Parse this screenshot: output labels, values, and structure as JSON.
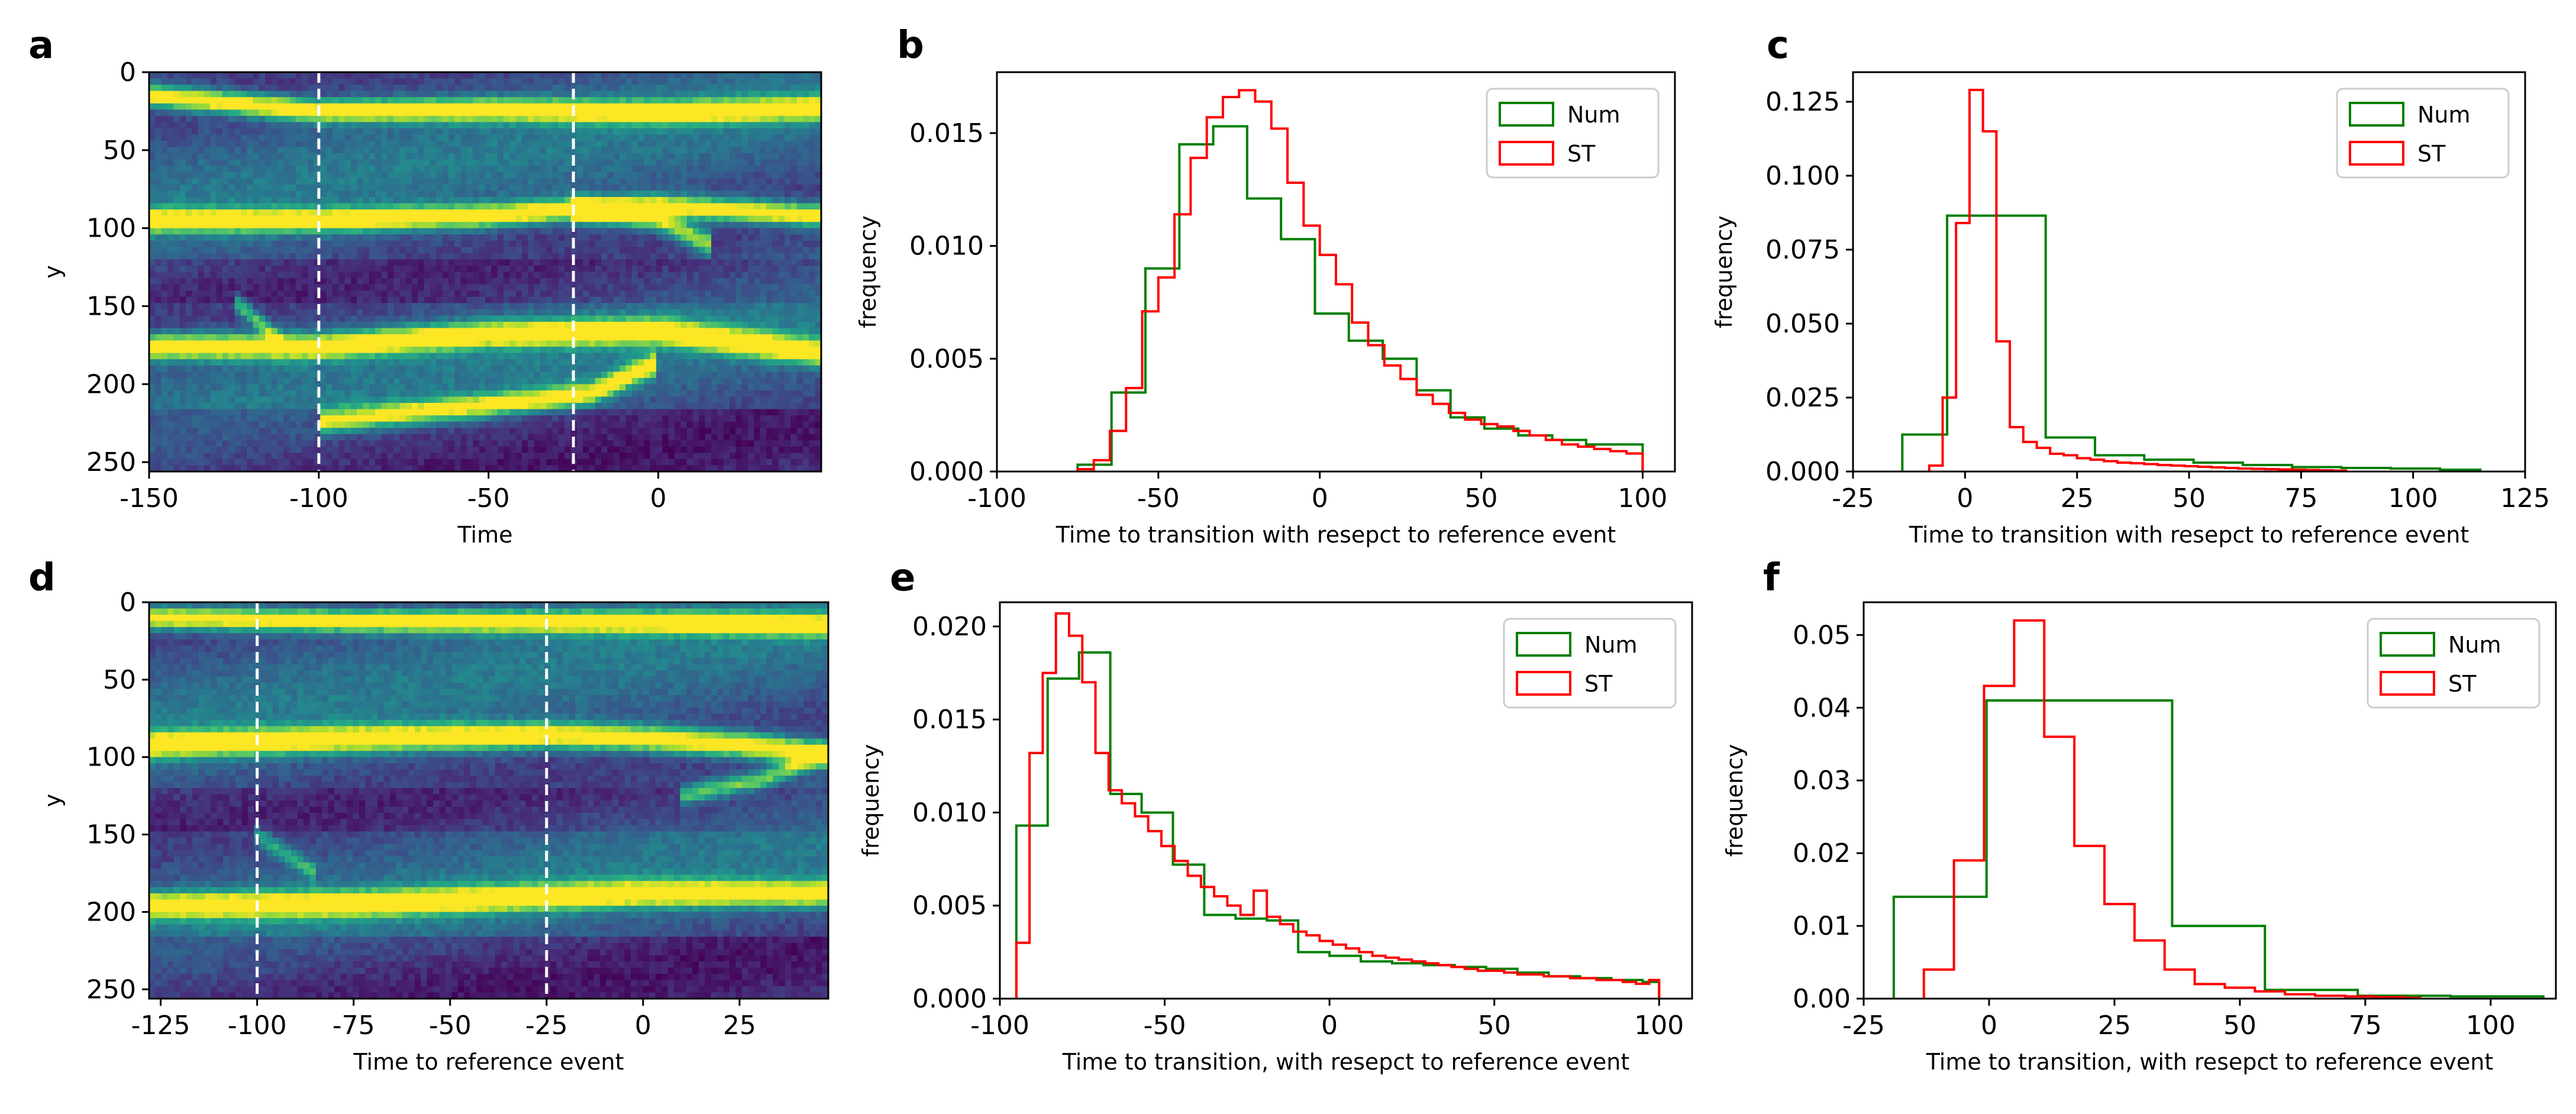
{
  "figure_title": "",
  "colors": {
    "num": "#008000",
    "st": "#ff0000",
    "axis": "#000000",
    "dash": "#ffffff"
  },
  "chart_data": [
    {
      "id": "a",
      "letter": "a",
      "type": "heatmap",
      "colormap": "viridis",
      "xlabel": "Time",
      "ylabel": "y",
      "xlim": [
        -150,
        48
      ],
      "ylim": [
        256,
        0
      ],
      "xticks": [
        -150,
        -100,
        -50,
        0
      ],
      "xtick_labels": [
        "-150",
        "-100",
        "-50",
        "0"
      ],
      "yticks": [
        0,
        50,
        100,
        150,
        200,
        250
      ],
      "ytick_labels": [
        "0",
        "50",
        "100",
        "150",
        "200",
        "250"
      ],
      "vlines": [
        -100,
        -25
      ],
      "bands": [
        {
          "points": [
            [
              -150,
              15
            ],
            [
              -100,
              25
            ],
            [
              -50,
              24
            ],
            [
              0,
              26
            ],
            [
              48,
              23
            ]
          ],
          "width": 7,
          "intensity": 1.0
        },
        {
          "points": [
            [
              -150,
              95
            ],
            [
              -100,
              95
            ],
            [
              -50,
              92
            ],
            [
              -25,
              88
            ],
            [
              0,
              86
            ],
            [
              48,
              92
            ]
          ],
          "width": 7,
          "intensity": 1.0
        },
        {
          "points": [
            [
              -25,
              88
            ],
            [
              0,
              95
            ],
            [
              15,
              110
            ]
          ],
          "width": 7,
          "intensity": 0.75
        },
        {
          "points": [
            [
              -150,
              176
            ],
            [
              -100,
              176
            ],
            [
              -50,
              168
            ],
            [
              0,
              166
            ],
            [
              48,
              180
            ]
          ],
          "width": 8,
          "intensity": 1.0
        },
        {
          "points": [
            [
              -125,
              146
            ],
            [
              -110,
              175
            ]
          ],
          "width": 6,
          "intensity": 0.55
        },
        {
          "points": [
            [
              -100,
              224
            ],
            [
              -50,
              214
            ],
            [
              -20,
              206
            ],
            [
              0,
              186
            ]
          ],
          "width": 7,
          "intensity": 0.85
        }
      ]
    },
    {
      "id": "b",
      "letter": "b",
      "type": "histogram",
      "xlabel": "Time to transition with resepct to reference event",
      "ylabel": "frequency",
      "xlim": [
        -100,
        110
      ],
      "ylim": [
        0,
        0.0177
      ],
      "xticks": [
        -100,
        -50,
        0,
        50,
        100
      ],
      "xtick_labels": [
        "-100",
        "-50",
        "0",
        "50",
        "100"
      ],
      "yticks": [
        0,
        0.005,
        0.01,
        0.015
      ],
      "ytick_labels": [
        "0.000",
        "0.005",
        "0.010",
        "0.015"
      ],
      "legend": [
        "Num",
        "ST"
      ],
      "series": [
        {
          "name": "Num",
          "color": "#008000",
          "edges": [
            -75,
            -64.5,
            -54,
            -43.5,
            -33,
            -22.5,
            -12,
            -1.5,
            9,
            19.5,
            30,
            40.5,
            51,
            61.5,
            72,
            82.5,
            93,
            100
          ],
          "values": [
            0.0003,
            0.0035,
            0.009,
            0.0145,
            0.0153,
            0.0121,
            0.0103,
            0.007,
            0.0058,
            0.005,
            0.0036,
            0.0024,
            0.0019,
            0.0016,
            0.0014,
            0.0012,
            0.0012
          ]
        },
        {
          "name": "ST",
          "color": "#ff0000",
          "edges": [
            -75,
            -70,
            -65,
            -60,
            -55,
            -50,
            -45,
            -40,
            -35,
            -30,
            -25,
            -20,
            -15,
            -10,
            -5,
            0,
            5,
            10,
            15,
            20,
            25,
            30,
            35,
            40,
            45,
            50,
            55,
            60,
            65,
            70,
            75,
            80,
            85,
            90,
            95,
            100
          ],
          "values": [
            0.0001,
            0.0005,
            0.0018,
            0.0037,
            0.0071,
            0.0086,
            0.0114,
            0.0139,
            0.0157,
            0.0166,
            0.0169,
            0.0164,
            0.0152,
            0.0128,
            0.0109,
            0.0096,
            0.0083,
            0.0066,
            0.0056,
            0.0047,
            0.0041,
            0.0034,
            0.003,
            0.0026,
            0.0023,
            0.0021,
            0.002,
            0.0018,
            0.0016,
            0.0014,
            0.0012,
            0.0011,
            0.001,
            0.0009,
            0.0008
          ]
        }
      ]
    },
    {
      "id": "c",
      "letter": "c",
      "type": "histogram",
      "xlabel": "Time to transition with resepct to reference event",
      "ylabel": "frequency",
      "xlim": [
        -25,
        125
      ],
      "ylim": [
        0,
        0.135
      ],
      "xticks": [
        -25,
        0,
        25,
        50,
        75,
        100,
        125
      ],
      "xtick_labels": [
        "-25",
        "0",
        "25",
        "50",
        "75",
        "100",
        "125"
      ],
      "yticks": [
        0,
        0.025,
        0.05,
        0.075,
        0.1,
        0.125
      ],
      "ytick_labels": [
        "0.000",
        "0.025",
        "0.050",
        "0.075",
        "0.100",
        "0.125"
      ],
      "legend": [
        "Num",
        "ST"
      ],
      "series": [
        {
          "name": "Num",
          "color": "#008000",
          "edges": [
            -14,
            -4,
            7,
            18,
            29,
            40,
            51,
            62,
            73,
            84,
            95,
            106,
            115
          ],
          "values": [
            0.0125,
            0.0865,
            0.0865,
            0.0115,
            0.0055,
            0.004,
            0.003,
            0.0022,
            0.0015,
            0.0012,
            0.001,
            0.0006
          ]
        },
        {
          "name": "ST",
          "color": "#ff0000",
          "edges": [
            -8,
            -5,
            -2,
            1,
            4,
            7,
            10,
            13,
            16,
            19,
            22,
            25,
            28,
            31,
            34,
            37,
            40,
            43,
            46,
            49,
            52,
            55,
            58,
            61,
            64,
            67,
            70,
            73,
            76,
            79,
            82,
            85
          ],
          "values": [
            0.002,
            0.025,
            0.084,
            0.129,
            0.115,
            0.044,
            0.015,
            0.01,
            0.008,
            0.006,
            0.0055,
            0.0045,
            0.004,
            0.0035,
            0.003,
            0.0028,
            0.0025,
            0.0022,
            0.002,
            0.0018,
            0.0016,
            0.0014,
            0.0012,
            0.001,
            0.0009,
            0.0008,
            0.0007,
            0.0006,
            0.0005,
            0.0004,
            0.0003
          ]
        }
      ]
    },
    {
      "id": "d",
      "letter": "d",
      "type": "heatmap",
      "colormap": "viridis",
      "xlabel": "Time to reference event",
      "ylabel": "y",
      "xlim": [
        -128,
        48
      ],
      "ylim": [
        256,
        0
      ],
      "xticks": [
        -125,
        -100,
        -50,
        -25,
        0,
        25
      ],
      "xtick_labels": [
        "-125",
        "-100",
        "-50",
        "-25",
        "0",
        "25"
      ],
      "xticks_extra": [
        -75
      ],
      "xtick_labels_extra": [
        "-75"
      ],
      "yticks": [
        0,
        50,
        100,
        150,
        200,
        250
      ],
      "ytick_labels": [
        "0",
        "50",
        "100",
        "150",
        "200",
        "250"
      ],
      "vlines": [
        -100,
        -25
      ],
      "bands": [
        {
          "points": [
            [
              -128,
              10
            ],
            [
              -75,
              12
            ],
            [
              0,
              13
            ],
            [
              48,
              15
            ]
          ],
          "width": 7,
          "intensity": 1.0
        },
        {
          "points": [
            [
              -128,
              92
            ],
            [
              -75,
              88
            ],
            [
              -25,
              86
            ],
            [
              0,
              88
            ],
            [
              25,
              92
            ],
            [
              48,
              98
            ]
          ],
          "width": 8,
          "intensity": 1.0
        },
        {
          "points": [
            [
              10,
              125
            ],
            [
              30,
              115
            ],
            [
              48,
              98
            ]
          ],
          "width": 6,
          "intensity": 0.6
        },
        {
          "points": [
            [
              -128,
              196
            ],
            [
              -75,
              195
            ],
            [
              -25,
              190
            ],
            [
              0,
              188
            ],
            [
              48,
              188
            ]
          ],
          "width": 8,
          "intensity": 1.0
        },
        {
          "points": [
            [
              -100,
              150
            ],
            [
              -85,
              175
            ]
          ],
          "width": 6,
          "intensity": 0.4
        }
      ]
    },
    {
      "id": "e",
      "letter": "e",
      "type": "histogram",
      "xlabel": "Time to transition, with resepct to reference event",
      "ylabel": "frequency",
      "xlim": [
        -100,
        110
      ],
      "ylim": [
        0,
        0.0213
      ],
      "xticks": [
        -100,
        -50,
        0,
        50,
        100
      ],
      "xtick_labels": [
        "-100",
        "-50",
        "0",
        "50",
        "100"
      ],
      "yticks": [
        0,
        0.005,
        0.01,
        0.015,
        0.02
      ],
      "ytick_labels": [
        "0.000",
        "0.005",
        "0.010",
        "0.015",
        "0.020"
      ],
      "legend": [
        "Num",
        "ST"
      ],
      "series": [
        {
          "name": "Num",
          "color": "#008000",
          "edges": [
            -95,
            -85.5,
            -76,
            -66.5,
            -57,
            -47.5,
            -38,
            -28.5,
            -19,
            -9.5,
            0,
            9.5,
            19,
            28.5,
            38,
            47.5,
            57,
            66.5,
            76,
            85.5,
            95,
            100
          ],
          "values": [
            0.0093,
            0.0172,
            0.0186,
            0.011,
            0.01,
            0.0072,
            0.0045,
            0.0043,
            0.0042,
            0.0025,
            0.0023,
            0.002,
            0.0019,
            0.0018,
            0.0017,
            0.0016,
            0.0014,
            0.0012,
            0.0011,
            0.001,
            0.0009
          ]
        },
        {
          "name": "ST",
          "color": "#ff0000",
          "edges": [
            -95,
            -91,
            -87,
            -83,
            -79,
            -75,
            -71,
            -67,
            -63,
            -59,
            -55,
            -51,
            -47,
            -43,
            -39,
            -35,
            -31,
            -27,
            -23,
            -19,
            -15,
            -11,
            -7,
            -3,
            1,
            5,
            9,
            13,
            17,
            21,
            25,
            29,
            33,
            37,
            41,
            45,
            49,
            53,
            57,
            61,
            65,
            69,
            73,
            77,
            81,
            85,
            89,
            93,
            97,
            100
          ],
          "values": [
            0.003,
            0.0132,
            0.0175,
            0.0207,
            0.0195,
            0.017,
            0.0132,
            0.0112,
            0.0105,
            0.0098,
            0.009,
            0.0082,
            0.0074,
            0.0066,
            0.006,
            0.0055,
            0.005,
            0.0045,
            0.0058,
            0.0044,
            0.004,
            0.0036,
            0.0034,
            0.0031,
            0.0029,
            0.0027,
            0.0025,
            0.0023,
            0.0022,
            0.0021,
            0.002,
            0.0019,
            0.0018,
            0.0017,
            0.0016,
            0.0015,
            0.0015,
            0.0014,
            0.0013,
            0.0013,
            0.0012,
            0.0012,
            0.0011,
            0.0011,
            0.001,
            0.001,
            0.0009,
            0.0008,
            0.001
          ]
        }
      ]
    },
    {
      "id": "f",
      "letter": "f",
      "type": "histogram",
      "xlabel": "Time to transition, with resepct to reference event",
      "ylabel": "frequency",
      "xlim": [
        -25,
        113
      ],
      "ylim": [
        0,
        0.0545
      ],
      "xticks": [
        -25,
        0,
        25,
        50,
        75,
        100
      ],
      "xtick_labels": [
        "-25",
        "0",
        "25",
        "50",
        "75",
        "100"
      ],
      "yticks": [
        0,
        0.01,
        0.02,
        0.03,
        0.04,
        0.05
      ],
      "ytick_labels": [
        "0.00",
        "0.01",
        "0.02",
        "0.03",
        "0.04",
        "0.05"
      ],
      "legend": [
        "Num",
        "ST"
      ],
      "series": [
        {
          "name": "Num",
          "color": "#008000",
          "edges": [
            -19,
            -0.5,
            18,
            36.5,
            55,
            73.5,
            92,
            110.5
          ],
          "values": [
            0.014,
            0.041,
            0.041,
            0.01,
            0.0012,
            0.0004,
            0.0003
          ]
        },
        {
          "name": "ST",
          "color": "#ff0000",
          "edges": [
            -13,
            -7,
            -1,
            5,
            11,
            17,
            23,
            29,
            35,
            41,
            47,
            53,
            59,
            65,
            71,
            77,
            83,
            86
          ],
          "values": [
            0.004,
            0.019,
            0.043,
            0.052,
            0.036,
            0.021,
            0.013,
            0.008,
            0.004,
            0.002,
            0.0015,
            0.001,
            0.0006,
            0.0004,
            0.0003,
            0.0002,
            0.0001
          ]
        }
      ]
    }
  ]
}
